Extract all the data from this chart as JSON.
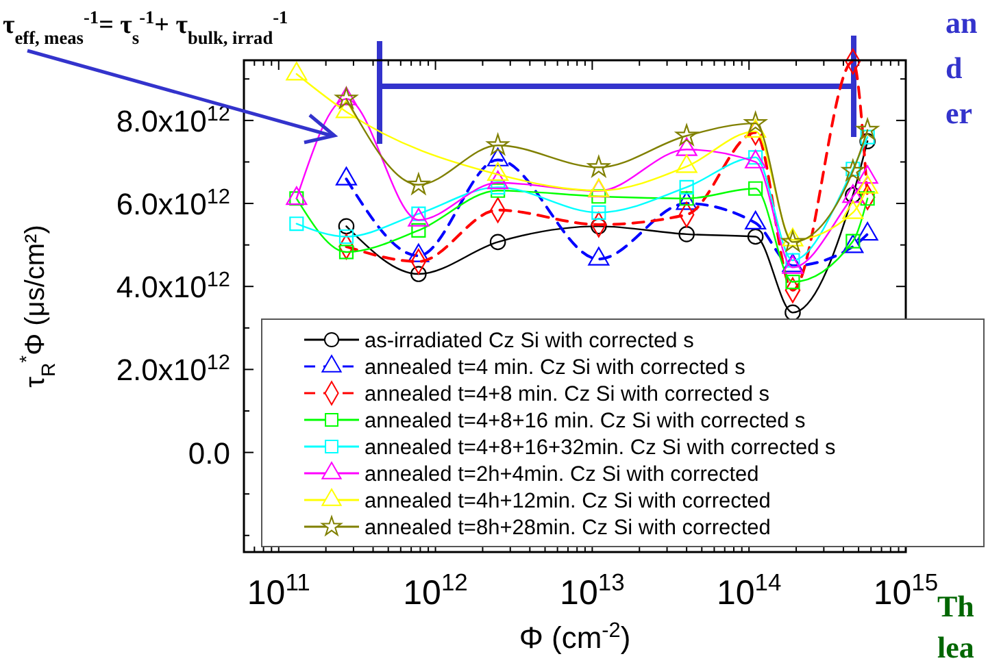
{
  "chart_data": {
    "type": "line",
    "xlabel": "Φ (cm$^{-2}$)",
    "ylabel": "τ$_{R}$$^{*}$Φ (μs/cm²)",
    "log": "x",
    "grid": false,
    "legend": "bottom",
    "xlim": [
      60000000000.0,
      1000000000000000.0
    ],
    "ylim": [
      -2400000000000.0,
      9450000000000.0
    ],
    "xticks": [
      {
        "value": 60000000000.0,
        "label": null
      },
      {
        "value": 70000000000.0,
        "label": null
      },
      {
        "value": 80000000000.0,
        "label": null
      },
      {
        "value": 90000000000.0,
        "label": null
      },
      {
        "value": 100000000000.0,
        "label": "10$^{11}$"
      },
      {
        "value": 200000000000.0,
        "label": null
      },
      {
        "value": 300000000000.0,
        "label": null
      },
      {
        "value": 400000000000.0,
        "label": null
      },
      {
        "value": 500000000000.0,
        "label": null
      },
      {
        "value": 600000000000.0,
        "label": null
      },
      {
        "value": 700000000000.0,
        "label": null
      },
      {
        "value": 800000000000.0,
        "label": null
      },
      {
        "value": 900000000000.0,
        "label": null
      },
      {
        "value": 1000000000000.0,
        "label": "10$^{12}$"
      },
      {
        "value": 2000000000000.0,
        "label": null
      },
      {
        "value": 3000000000000.0,
        "label": null
      },
      {
        "value": 4000000000000.0,
        "label": null
      },
      {
        "value": 5000000000000.0,
        "label": null
      },
      {
        "value": 6000000000000.0,
        "label": null
      },
      {
        "value": 7000000000000.0,
        "label": null
      },
      {
        "value": 8000000000000.0,
        "label": null
      },
      {
        "value": 9000000000000.0,
        "label": null
      },
      {
        "value": 10000000000000.0,
        "label": "10$^{13}$"
      },
      {
        "value": 20000000000000.0,
        "label": null
      },
      {
        "value": 30000000000000.0,
        "label": null
      },
      {
        "value": 40000000000000.0,
        "label": null
      },
      {
        "value": 50000000000000.0,
        "label": null
      },
      {
        "value": 60000000000000.0,
        "label": null
      },
      {
        "value": 70000000000000.0,
        "label": null
      },
      {
        "value": 80000000000000.0,
        "label": null
      },
      {
        "value": 90000000000000.0,
        "label": null
      },
      {
        "value": 100000000000000.0,
        "label": "10$^{14}$"
      },
      {
        "value": 200000000000000.0,
        "label": null
      },
      {
        "value": 300000000000000.0,
        "label": null
      },
      {
        "value": 400000000000000.0,
        "label": null
      },
      {
        "value": 500000000000000.0,
        "label": null
      },
      {
        "value": 600000000000000.0,
        "label": null
      },
      {
        "value": 700000000000000.0,
        "label": null
      },
      {
        "value": 800000000000000.0,
        "label": null
      },
      {
        "value": 900000000000000.0,
        "label": null
      },
      {
        "value": 1000000000000000.0,
        "label": "10$^{15}$"
      }
    ],
    "yticks": [
      {
        "value": -2000000000000.0,
        "label": null
      },
      {
        "value": -1000000000000.0,
        "label": null
      },
      {
        "value": 0,
        "label": "0.0"
      },
      {
        "value": 1000000000000.0,
        "label": null
      },
      {
        "value": 2000000000000.0,
        "label": "2.0x10$^{12}$"
      },
      {
        "value": 3000000000000.0,
        "label": null
      },
      {
        "value": 4000000000000.0,
        "label": "4.0x10$^{12}$"
      },
      {
        "value": 5000000000000.0,
        "label": null
      },
      {
        "value": 6000000000000.0,
        "label": "6.0x10$^{12}$"
      },
      {
        "value": 7000000000000.0,
        "label": null
      },
      {
        "value": 8000000000000.0,
        "label": "8.0x10$^{12}$"
      },
      {
        "value": 9000000000000.0,
        "label": null
      }
    ],
    "x": [
      130000000000.0,
      270000000000.0,
      780000000000.0,
      2500000000000.0,
      11000000000000.0,
      40000000000000.0,
      110000000000000.0,
      190000000000000.0,
      460000000000000.0,
      570000000000000.0
    ],
    "series": [
      {
        "name": "as-irradiated Cz Si with corrected s",
        "color": "#000000",
        "marker": "circle",
        "line_style": "solid",
        "values": [
          null,
          5450000000000.0,
          4300000000000.0,
          5070000000000.0,
          5450000000000.0,
          5260000000000.0,
          5200000000000.0,
          3370000000000.0,
          6200000000000.0,
          7500000000000.0
        ]
      },
      {
        "name": "annealed t=4 min. Cz Si with corrected s",
        "color": "#0000ff",
        "marker": "triangle",
        "line_style": "dashed",
        "values": [
          null,
          6590000000000.0,
          4740000000000.0,
          7050000000000.0,
          4660000000000.0,
          6000000000000.0,
          5530000000000.0,
          4500000000000.0,
          4960000000000.0,
          5260000000000.0
        ]
      },
      {
        "name": "annealed t=4+8 min. Cz Si with corrected s",
        "color": "#ff0000",
        "marker": "diamond",
        "line_style": "dashed",
        "values": [
          null,
          4960000000000.0,
          4600000000000.0,
          5840000000000.0,
          5490000000000.0,
          5730000000000.0,
          7710000000000.0,
          3910000000000.0,
          9420000000000.0,
          6150000000000.0
        ]
      },
      {
        "name": "annealed t=4+8+16 min. Cz Si with corrected s",
        "color": "#00ff00",
        "marker": "square",
        "line_style": "solid",
        "values": [
          6120000000000.0,
          4830000000000.0,
          5350000000000.0,
          6310000000000.0,
          6170000000000.0,
          6120000000000.0,
          6360000000000.0,
          4110000000000.0,
          5090000000000.0,
          6120000000000.0
        ]
      },
      {
        "name": "annealed t=4+8+16+32min. Cz Si with corrected s",
        "color": "#00ffff",
        "marker": "square",
        "line_style": "solid",
        "values": [
          5510000000000.0,
          5200000000000.0,
          5750000000000.0,
          6390000000000.0,
          5780000000000.0,
          6390000000000.0,
          7110000000000.0,
          4630000000000.0,
          6830000000000.0,
          7600000000000.0
        ]
      },
      {
        "name": "annealed t=2h+4min. Cz Si with corrected",
        "color": "#ff00ff",
        "marker": "triangle",
        "line_style": "solid",
        "values": [
          6120000000000.0,
          8520000000000.0,
          5600000000000.0,
          6500000000000.0,
          6300000000000.0,
          7300000000000.0,
          7000000000000.0,
          4460000000000.0,
          6170000000000.0,
          6630000000000.0
        ]
      },
      {
        "name": "annealed t=4h+12min. Cz Si with corrected",
        "color": "#ffff00",
        "marker": "triangle",
        "line_style": "solid",
        "values": [
          9120000000000.0,
          8210000000000.0,
          null,
          6700000000000.0,
          6310000000000.0,
          6890000000000.0,
          7740000000000.0,
          5120000000000.0,
          5780000000000.0,
          6390000000000.0
        ]
      },
      {
        "name": "annealed t=8h+28min. Cz Si with corrected",
        "color": "#808000",
        "marker": "star",
        "line_style": "solid",
        "values": [
          null,
          8520000000000.0,
          6450000000000.0,
          7400000000000.0,
          6870000000000.0,
          7630000000000.0,
          7930000000000.0,
          5070000000000.0,
          6780000000000.0,
          7770000000000.0
        ]
      }
    ],
    "annotations": [
      "τ$_{eff, meas}$$^{-1}$= τ$_{s}$$^{-1}$+ τ$_{bulk, irrad}$$^{-1}$",
      "an",
      "d",
      "er",
      "Th",
      "lea"
    ]
  }
}
